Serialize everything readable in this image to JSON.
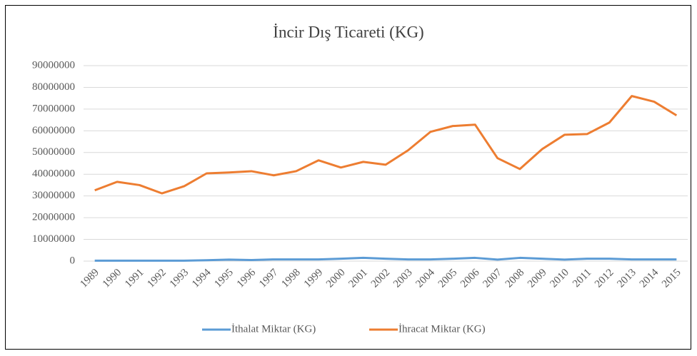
{
  "chart_data": {
    "type": "line",
    "title": "İncir Dış Ticareti (KG)",
    "categories": [
      "1989",
      "1990",
      "1991",
      "1992",
      "1993",
      "1994",
      "1995",
      "1996",
      "1997",
      "1998",
      "1999",
      "2000",
      "2001",
      "2002",
      "2003",
      "2004",
      "2005",
      "2006",
      "2007",
      "2008",
      "2009",
      "2010",
      "2011",
      "2012",
      "2013",
      "2014",
      "2015"
    ],
    "series": [
      {
        "name": "İthalat Miktar (KG)",
        "color": "#5b9bd5",
        "values": [
          200000,
          200000,
          200000,
          200000,
          200000,
          400000,
          700000,
          500000,
          800000,
          800000,
          800000,
          1100000,
          1500000,
          1100000,
          800000,
          800000,
          1100000,
          1500000,
          700000,
          1500000,
          1100000,
          700000,
          1100000,
          1100000,
          800000,
          800000,
          800000
        ]
      },
      {
        "name": "İhracat Miktar (KG)",
        "color": "#ed7d31",
        "values": [
          32600000,
          36500000,
          35000000,
          31200000,
          34500000,
          40400000,
          40800000,
          41400000,
          39500000,
          41400000,
          46400000,
          43100000,
          45700000,
          44400000,
          51000000,
          59500000,
          62200000,
          62800000,
          47400000,
          42400000,
          51600000,
          58200000,
          58500000,
          63800000,
          76000000,
          73400000,
          67100000
        ]
      }
    ],
    "ylim": [
      0,
      90000000
    ],
    "yticks": [
      0,
      10000000,
      20000000,
      30000000,
      40000000,
      50000000,
      60000000,
      70000000,
      80000000,
      90000000
    ],
    "grid": true,
    "legend": "bottom"
  }
}
